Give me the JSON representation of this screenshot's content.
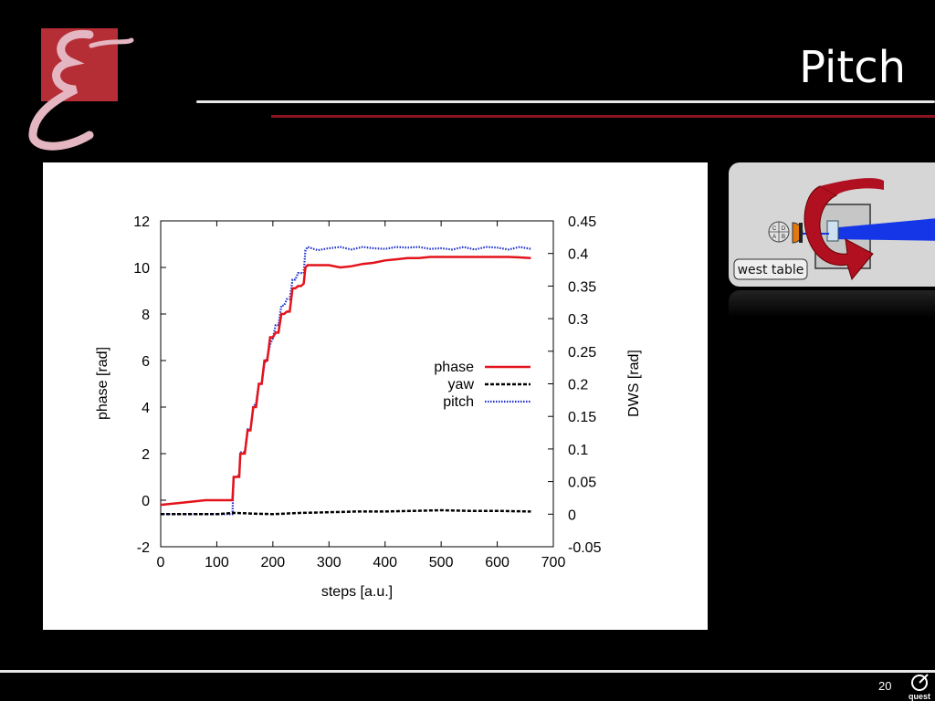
{
  "slide": {
    "title": "Pitch",
    "page_number": "20",
    "logo_text": "quest"
  },
  "diagram": {
    "label": "west table",
    "quadrant_labels": [
      "C",
      "D",
      "A",
      "B"
    ]
  },
  "colors": {
    "background": "#000000",
    "accent_red": "#8c1420",
    "phase": "#e3131b",
    "yaw": "#000000",
    "pitch": "#1a2ecc",
    "beam": "#1436e6"
  },
  "chart_data": {
    "type": "line",
    "xlabel": "steps [a.u.]",
    "ylabel": "phase [rad]",
    "y2label": "DWS [rad]",
    "xlim": [
      0,
      700
    ],
    "ylim": [
      -2,
      12
    ],
    "y2lim": [
      -0.05,
      0.45
    ],
    "xticks": [
      "0",
      "100",
      "200",
      "300",
      "400",
      "500",
      "600",
      "700"
    ],
    "yticks": [
      "-2",
      "0",
      "2",
      "4",
      "6",
      "8",
      "10",
      "12"
    ],
    "y2ticks": [
      "-0.05",
      "0",
      "0.05",
      "0.1",
      "0.15",
      "0.2",
      "0.25",
      "0.3",
      "0.35",
      "0.4",
      "0.45"
    ],
    "legend_position": "center-right",
    "grid": false,
    "series": [
      {
        "name": "phase",
        "axis": "left",
        "style": "solid",
        "x": [
          0,
          40,
          80,
          110,
          128,
          130,
          140,
          142,
          150,
          155,
          160,
          165,
          170,
          175,
          180,
          185,
          190,
          195,
          200,
          205,
          210,
          215,
          220,
          225,
          230,
          235,
          240,
          245,
          250,
          255,
          258,
          262,
          280,
          300,
          320,
          340,
          360,
          380,
          400,
          420,
          440,
          460,
          480,
          500,
          520,
          540,
          560,
          580,
          600,
          620,
          640,
          660
        ],
        "y": [
          -0.2,
          -0.1,
          0.0,
          0.0,
          0.0,
          1.0,
          1.0,
          2.0,
          2.0,
          3.0,
          3.0,
          4.0,
          4.0,
          5.0,
          5.0,
          6.0,
          6.0,
          7.0,
          7.0,
          7.2,
          7.2,
          8.0,
          8.0,
          8.1,
          8.1,
          9.1,
          9.1,
          9.2,
          9.2,
          9.3,
          10.0,
          10.1,
          10.1,
          10.1,
          10.0,
          10.05,
          10.15,
          10.2,
          10.3,
          10.35,
          10.4,
          10.4,
          10.45,
          10.45,
          10.45,
          10.45,
          10.45,
          10.45,
          10.45,
          10.45,
          10.43,
          10.4
        ]
      },
      {
        "name": "yaw",
        "axis": "right",
        "style": "dashed",
        "x": [
          0,
          50,
          100,
          130,
          160,
          200,
          250,
          300,
          350,
          400,
          450,
          500,
          550,
          600,
          660
        ],
        "y": [
          0.0,
          0.0,
          0.0,
          0.002,
          0.001,
          0.0,
          0.002,
          0.003,
          0.004,
          0.004,
          0.005,
          0.006,
          0.005,
          0.005,
          0.004
        ]
      },
      {
        "name": "pitch",
        "axis": "right",
        "style": "dotted",
        "x": [
          0,
          50,
          100,
          128,
          130,
          140,
          142,
          150,
          155,
          160,
          165,
          170,
          175,
          180,
          185,
          190,
          195,
          200,
          205,
          210,
          215,
          220,
          225,
          230,
          235,
          240,
          245,
          250,
          255,
          258,
          262,
          280,
          300,
          320,
          340,
          360,
          380,
          400,
          420,
          440,
          460,
          480,
          500,
          520,
          540,
          560,
          580,
          600,
          620,
          640,
          660
        ],
        "y": [
          0.0,
          0.0,
          0.0,
          0.0,
          0.055,
          0.06,
          0.095,
          0.095,
          0.13,
          0.13,
          0.165,
          0.17,
          0.2,
          0.2,
          0.23,
          0.24,
          0.26,
          0.27,
          0.29,
          0.29,
          0.32,
          0.32,
          0.33,
          0.33,
          0.36,
          0.36,
          0.37,
          0.37,
          0.37,
          0.405,
          0.41,
          0.405,
          0.408,
          0.41,
          0.406,
          0.41,
          0.408,
          0.407,
          0.41,
          0.409,
          0.41,
          0.407,
          0.408,
          0.406,
          0.41,
          0.406,
          0.41,
          0.409,
          0.406,
          0.41,
          0.407
        ]
      }
    ]
  }
}
